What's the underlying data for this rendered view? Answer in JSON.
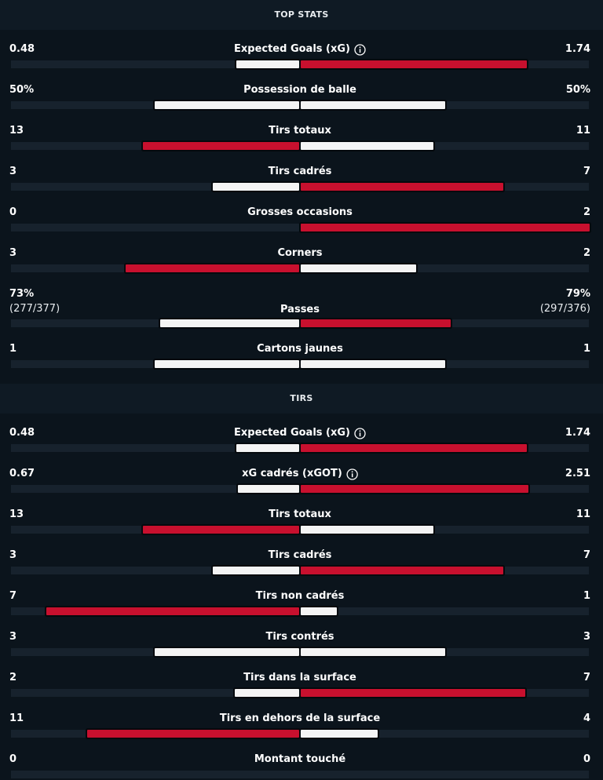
{
  "sections": [
    {
      "title": "TOP STATS",
      "rows": [
        {
          "name": "Expected Goals (xG)",
          "info_icon": true,
          "home": 0.48,
          "away": 1.74
        },
        {
          "name": "Possession de balle",
          "home": {
            "value": 50,
            "label": "50%"
          },
          "away": {
            "value": 50,
            "label": "50%"
          }
        },
        {
          "name": "Tirs totaux",
          "home": 13,
          "away": 11
        },
        {
          "name": "Tirs cadrés",
          "home": 3,
          "away": 7
        },
        {
          "name": "Grosses occasions",
          "home": 0,
          "away": 2
        },
        {
          "name": "Corners",
          "home": 3,
          "away": 2
        },
        {
          "name": "Passes",
          "home": {
            "value": 73,
            "label": "73%",
            "detail": "(277/377)"
          },
          "away": {
            "value": 79,
            "label": "79%",
            "detail": "(297/376)"
          }
        },
        {
          "name": "Cartons jaunes",
          "home": 1,
          "away": 1
        }
      ]
    },
    {
      "title": "TIRS",
      "rows": [
        {
          "name": "Expected Goals (xG)",
          "info_icon": true,
          "home": 0.48,
          "away": 1.74
        },
        {
          "name": "xG cadrés (xGOT)",
          "info_icon": true,
          "home": 0.67,
          "away": 2.51
        },
        {
          "name": "Tirs totaux",
          "home": 13,
          "away": 11
        },
        {
          "name": "Tirs cadrés",
          "home": 3,
          "away": 7
        },
        {
          "name": "Tirs non cadrés",
          "home": 7,
          "away": 1
        },
        {
          "name": "Tirs contrés",
          "home": 3,
          "away": 3
        },
        {
          "name": "Tirs dans la surface",
          "home": 2,
          "away": 7
        },
        {
          "name": "Tirs en dehors de la surface",
          "home": 11,
          "away": 4
        },
        {
          "name": "Montant touché",
          "home": 0,
          "away": 0
        }
      ]
    }
  ]
}
